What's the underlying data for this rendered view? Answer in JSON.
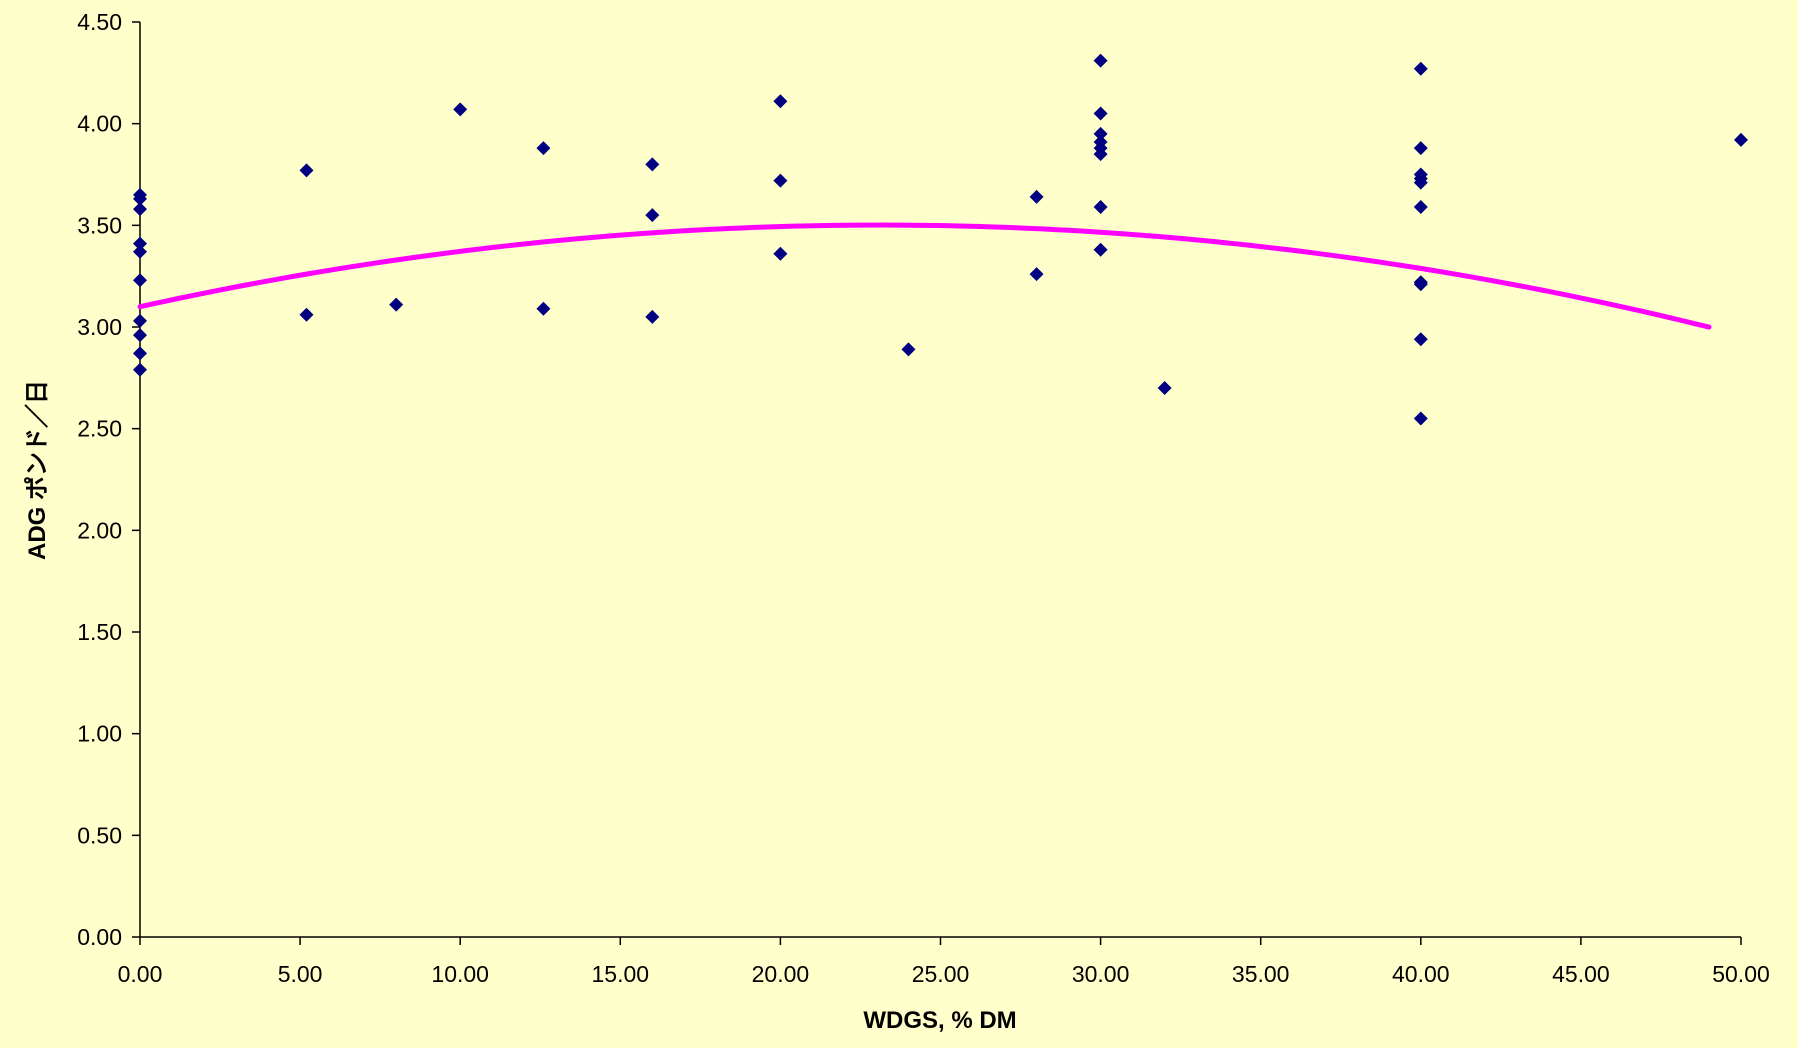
{
  "chart_data": {
    "type": "scatter",
    "title": "",
    "xlabel": "WDGS, % DM",
    "ylabel": "ADG ポンド／日",
    "xlim": [
      0,
      50
    ],
    "ylim": [
      0,
      4.5
    ],
    "x_ticks": [
      "0.00",
      "5.00",
      "10.00",
      "15.00",
      "20.00",
      "25.00",
      "30.00",
      "35.00",
      "40.00",
      "45.00",
      "50.00"
    ],
    "y_ticks": [
      "0.00",
      "0.50",
      "1.00",
      "1.50",
      "2.00",
      "2.50",
      "3.00",
      "3.50",
      "4.00",
      "4.50"
    ],
    "grid": false,
    "legend": "none",
    "colors": {
      "background": "#FFFFCC",
      "points": "#000080",
      "trend": "#FF00FF",
      "axis": "#000000"
    },
    "series": [
      {
        "type": "scatter",
        "marker": "diamond",
        "points": [
          [
            0,
            3.65
          ],
          [
            0,
            3.63
          ],
          [
            0,
            3.58
          ],
          [
            0,
            3.41
          ],
          [
            0,
            3.37
          ],
          [
            0,
            3.23
          ],
          [
            0,
            3.03
          ],
          [
            0,
            2.96
          ],
          [
            0,
            2.87
          ],
          [
            0,
            2.79
          ],
          [
            5.2,
            3.77
          ],
          [
            5.2,
            3.06
          ],
          [
            8,
            3.11
          ],
          [
            10,
            4.07
          ],
          [
            12.6,
            3.88
          ],
          [
            12.6,
            3.09
          ],
          [
            16,
            3.8
          ],
          [
            16,
            3.55
          ],
          [
            16,
            3.05
          ],
          [
            20,
            4.11
          ],
          [
            20,
            3.72
          ],
          [
            20,
            3.36
          ],
          [
            24,
            2.89
          ],
          [
            28,
            3.64
          ],
          [
            28,
            3.26
          ],
          [
            30,
            4.31
          ],
          [
            30,
            4.05
          ],
          [
            30,
            3.95
          ],
          [
            30,
            3.91
          ],
          [
            30,
            3.88
          ],
          [
            30,
            3.85
          ],
          [
            30,
            3.59
          ],
          [
            30,
            3.38
          ],
          [
            32,
            2.7
          ],
          [
            40,
            4.27
          ],
          [
            40,
            3.88
          ],
          [
            40,
            3.75
          ],
          [
            40,
            3.73
          ],
          [
            40,
            3.71
          ],
          [
            40,
            3.59
          ],
          [
            40,
            3.22
          ],
          [
            40,
            3.21
          ],
          [
            40,
            2.94
          ],
          [
            40,
            2.55
          ],
          [
            50,
            3.92
          ]
        ]
      },
      {
        "type": "line",
        "style": "quadratic-trend",
        "x_range": [
          0,
          49
        ],
        "coefficients": [
          3.1,
          0.0347,
          -0.00075
        ]
      }
    ]
  }
}
